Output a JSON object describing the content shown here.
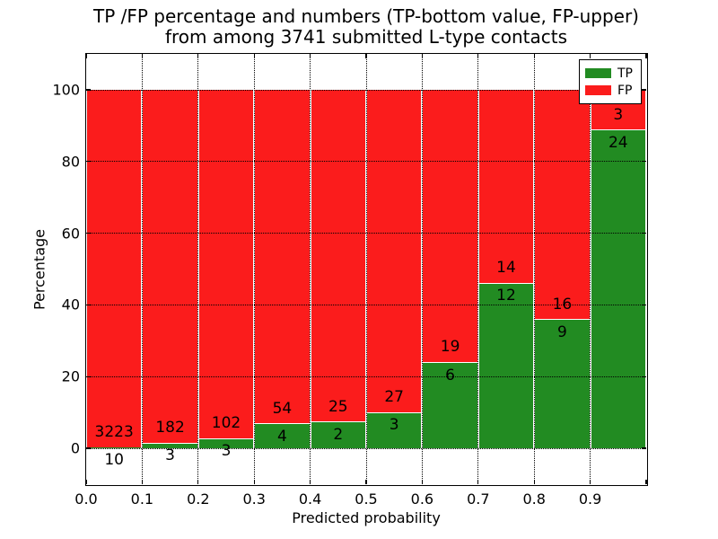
{
  "figure": {
    "background": "#ffffff",
    "title_line1": "TP /FP percentage and numbers (TP-bottom value, FP-upper)",
    "title_line2": "from among 3741 submitted L-type contacts"
  },
  "axes": {
    "xlabel": "Predicted probability",
    "ylabel": "Percentage",
    "xtick_labels": [
      "0.0",
      "0.1",
      "0.2",
      "0.3",
      "0.4",
      "0.5",
      "0.6",
      "0.7",
      "0.8",
      "0.9"
    ],
    "ytick_labels": [
      "0",
      "20",
      "40",
      "60",
      "80",
      "100"
    ]
  },
  "legend": {
    "entries": [
      {
        "label": "TP",
        "color": "#228b22"
      },
      {
        "label": "FP",
        "color": "#fb1c1c"
      }
    ],
    "position": "upper right"
  },
  "chart_data": {
    "type": "bar",
    "stacked": true,
    "title": "TP /FP percentage and numbers (TP-bottom value, FP-upper) from among 3741 submitted L-type contacts",
    "xlabel": "Predicted probability",
    "ylabel": "Percentage",
    "total_submitted_contacts": 3741,
    "bins": [
      "0.0-0.1",
      "0.1-0.2",
      "0.2-0.3",
      "0.3-0.4",
      "0.4-0.5",
      "0.5-0.6",
      "0.6-0.7",
      "0.7-0.8",
      "0.8-0.9",
      "0.9-1.0"
    ],
    "series": [
      {
        "name": "TP",
        "color": "#228b22",
        "counts": [
          10,
          3,
          3,
          4,
          2,
          3,
          6,
          12,
          9,
          24
        ]
      },
      {
        "name": "FP",
        "color": "#fb1c1c",
        "counts": [
          3223,
          182,
          102,
          54,
          25,
          27,
          19,
          14,
          16,
          3
        ]
      }
    ],
    "tp_percent_of_bin": [
      0.31,
      1.62,
      2.86,
      6.9,
      7.41,
      10.0,
      24.0,
      46.15,
      36.0,
      88.89
    ],
    "bar_total_percent": 100,
    "xlim": [
      0.0,
      1.0
    ],
    "ylim": [
      -10,
      110
    ],
    "xticks": [
      0.0,
      0.1,
      0.2,
      0.3,
      0.4,
      0.5,
      0.6,
      0.7,
      0.8,
      0.9
    ],
    "yticks": [
      0,
      20,
      40,
      60,
      80,
      100
    ],
    "grid": "dotted black, drawn above bars",
    "legend_position": "upper right"
  }
}
